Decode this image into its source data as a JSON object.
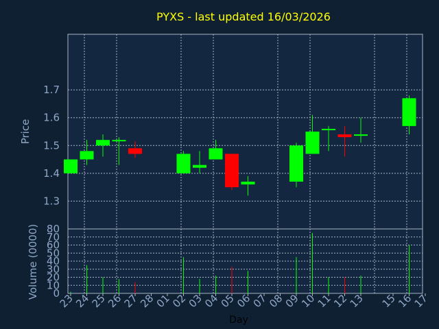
{
  "colors": {
    "background": "#102033",
    "plot_background": "#132840",
    "grid": "#a9b6c6",
    "axis_text": "#8fa8c8",
    "title": "#ffff00",
    "up": "#00ff00",
    "down": "#ff0000"
  },
  "chart_data": [
    {
      "type": "candlestick",
      "title": "PYXS - last updated 16/03/2026",
      "ylabel": "Price",
      "ylim": [
        1.2,
        1.9
      ],
      "yticks": [
        1.3,
        1.4,
        1.5,
        1.6,
        1.7
      ],
      "ytick_labels": [
        "1.3",
        "1.4",
        "1.5",
        "1.6",
        "1.7"
      ],
      "grid": true,
      "x_days": [
        "23",
        "24",
        "25",
        "26",
        "27",
        "28",
        "01",
        "02",
        "03",
        "04",
        "05",
        "06",
        "07",
        "08",
        "09",
        "10",
        "11",
        "12",
        "13",
        "16",
        "17"
      ],
      "x_days_unlabeled_positions": [
        "14",
        "15"
      ],
      "candles": [
        {
          "day": "23",
          "open": 1.4,
          "high": 1.45,
          "low": 1.4,
          "close": 1.45
        },
        {
          "day": "24",
          "open": 1.45,
          "high": 1.52,
          "low": 1.43,
          "close": 1.48
        },
        {
          "day": "25",
          "open": 1.5,
          "high": 1.54,
          "low": 1.46,
          "close": 1.52
        },
        {
          "day": "26",
          "open": 1.515,
          "high": 1.53,
          "low": 1.43,
          "close": 1.52
        },
        {
          "day": "27",
          "open": 1.49,
          "high": 1.515,
          "low": 1.455,
          "close": 1.47
        },
        {
          "day": "02",
          "open": 1.4,
          "high": 1.48,
          "low": 1.4,
          "close": 1.47
        },
        {
          "day": "03",
          "open": 1.42,
          "high": 1.48,
          "low": 1.4,
          "close": 1.43
        },
        {
          "day": "04",
          "open": 1.45,
          "high": 1.52,
          "low": 1.45,
          "close": 1.49
        },
        {
          "day": "05",
          "open": 1.47,
          "high": 1.47,
          "low": 1.34,
          "close": 1.35
        },
        {
          "day": "06",
          "open": 1.36,
          "high": 1.39,
          "low": 1.32,
          "close": 1.37
        },
        {
          "day": "09",
          "open": 1.37,
          "high": 1.51,
          "low": 1.35,
          "close": 1.5
        },
        {
          "day": "10",
          "open": 1.47,
          "high": 1.61,
          "low": 1.47,
          "close": 1.55
        },
        {
          "day": "11",
          "open": 1.555,
          "high": 1.57,
          "low": 1.48,
          "close": 1.56
        },
        {
          "day": "12",
          "open": 1.54,
          "high": 1.57,
          "low": 1.46,
          "close": 1.53
        },
        {
          "day": "13",
          "open": 1.535,
          "high": 1.6,
          "low": 1.51,
          "close": 1.54
        },
        {
          "day": "16",
          "open": 1.57,
          "high": 1.68,
          "low": 1.54,
          "close": 1.67
        }
      ]
    },
    {
      "type": "bar",
      "ylabel": "Volume (0000)",
      "xlabel": "Day",
      "ylim": [
        0,
        80
      ],
      "yticks": [
        0,
        10,
        20,
        30,
        40,
        50,
        60,
        70,
        80
      ],
      "ytick_labels": [
        "0",
        "10",
        "20",
        "30",
        "40",
        "50",
        "60",
        "70",
        "80"
      ],
      "grid": true,
      "volumes": [
        {
          "day": "23",
          "value": 2,
          "color": "up"
        },
        {
          "day": "24",
          "value": 35,
          "color": "up"
        },
        {
          "day": "25",
          "value": 20,
          "color": "up"
        },
        {
          "day": "26",
          "value": 18,
          "color": "up"
        },
        {
          "day": "27",
          "value": 14,
          "color": "down"
        },
        {
          "day": "02",
          "value": 45,
          "color": "up"
        },
        {
          "day": "03",
          "value": 18,
          "color": "up"
        },
        {
          "day": "04",
          "value": 22,
          "color": "up"
        },
        {
          "day": "05",
          "value": 33,
          "color": "down"
        },
        {
          "day": "06",
          "value": 28,
          "color": "up"
        },
        {
          "day": "09",
          "value": 45,
          "color": "up"
        },
        {
          "day": "10",
          "value": 75,
          "color": "up"
        },
        {
          "day": "11",
          "value": 20,
          "color": "up"
        },
        {
          "day": "12",
          "value": 20,
          "color": "down"
        },
        {
          "day": "13",
          "value": 22,
          "color": "up"
        },
        {
          "day": "16",
          "value": 60,
          "color": "up"
        }
      ]
    }
  ]
}
